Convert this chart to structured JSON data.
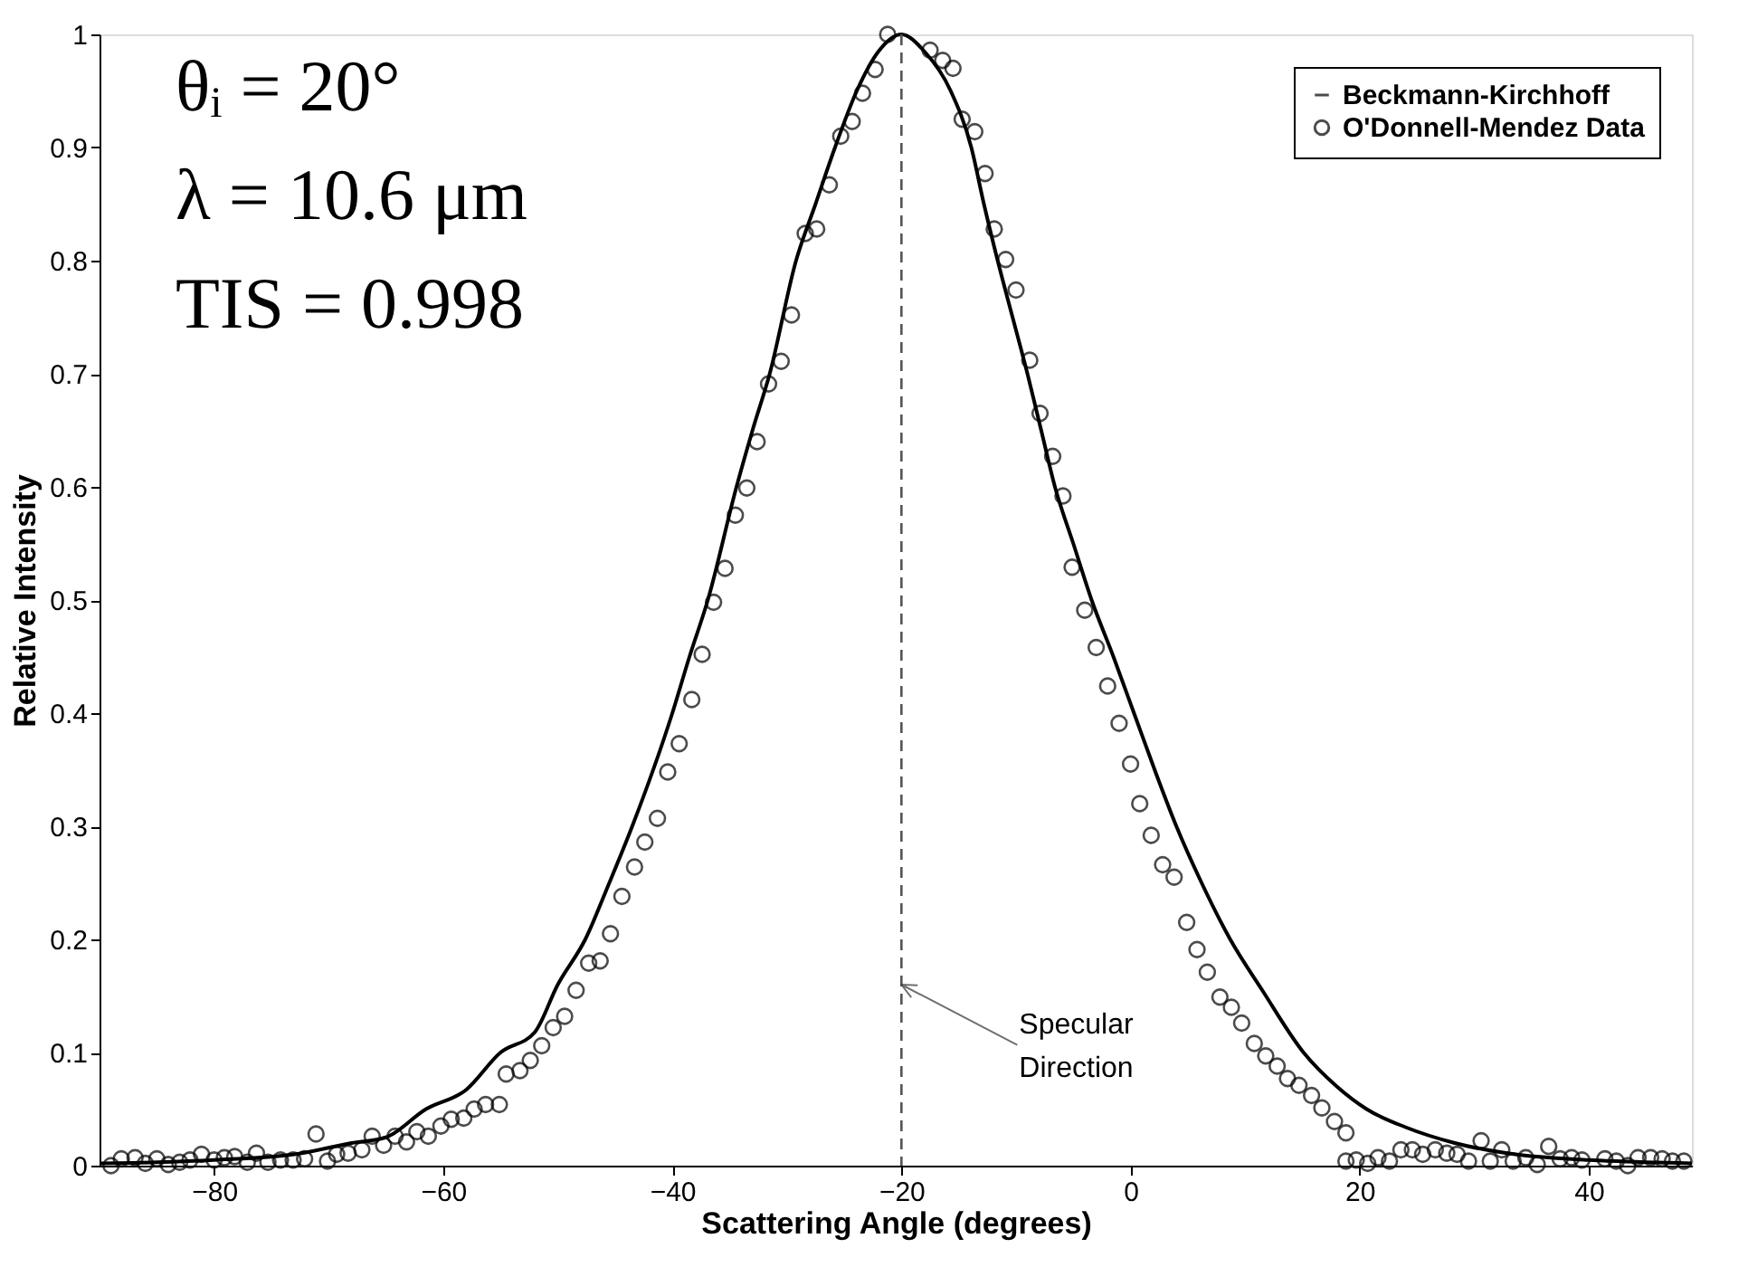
{
  "chart_data": {
    "type": "line",
    "xlabel": "Scattering Angle (degrees)",
    "ylabel": "Relative Intensity",
    "xlim": [
      -90,
      49
    ],
    "xticks": [
      -80,
      -60,
      -40,
      -20,
      0,
      20,
      40
    ],
    "ylim": [
      0,
      1
    ],
    "yticks": [
      0,
      0.1,
      0.2,
      0.3,
      0.4,
      0.5,
      0.6,
      0.7,
      0.8,
      0.9,
      1
    ],
    "grid": false,
    "legend": "top right",
    "series": [
      {
        "name": "Beckmann-Kirchhoff",
        "color": "#000000",
        "line_style": "solid",
        "marker": "none",
        "x": [
          -90,
          -85,
          -80,
          -73,
          -68,
          -65,
          -61.5,
          -58,
          -55,
          -52,
          -50,
          -47.6,
          -45.5,
          -43.5,
          -40,
          -38.5,
          -36.9,
          -34.4,
          -33,
          -31.5,
          -29.2,
          -27.5,
          -25.8,
          -23.9,
          -22,
          -20,
          -18,
          -15.7,
          -13.9,
          -12.8,
          -11.6,
          -10.3,
          -9.0,
          -7.8,
          -6.6,
          -5,
          -3.4,
          -1.5,
          0.3,
          2.1,
          4.0,
          6.2,
          8.7,
          11.5,
          15.1,
          18,
          20.6,
          24,
          28.3,
          33.6,
          40,
          49
        ],
        "values": [
          0.002,
          0.003,
          0.005,
          0.01,
          0.02,
          0.025,
          0.05,
          0.067,
          0.1,
          0.118,
          0.16,
          0.2,
          0.25,
          0.3,
          0.4,
          0.45,
          0.5,
          0.6,
          0.65,
          0.7,
          0.8,
          0.85,
          0.9,
          0.95,
          0.985,
          1,
          0.985,
          0.95,
          0.9,
          0.85,
          0.8,
          0.75,
          0.7,
          0.65,
          0.6,
          0.55,
          0.5,
          0.45,
          0.4,
          0.35,
          0.3,
          0.25,
          0.2,
          0.155,
          0.1,
          0.07,
          0.05,
          0.034,
          0.02,
          0.01,
          0.005,
          0.002
        ]
      },
      {
        "name": "O'Donnell-Mendez Data",
        "type": "scatter",
        "color": "#000000",
        "marker": "circle",
        "x": [
          -89.0,
          -88.1,
          -86.9,
          -86.0,
          -85.0,
          -84.0,
          -83.0,
          -82.1,
          -81.1,
          -80.0,
          -79.1,
          -78.2,
          -77.1,
          -76.3,
          -75.3,
          -74.2,
          -73.1,
          -72.1,
          -71.1,
          -70.1,
          -69.3,
          -68.3,
          -67.1,
          -66.2,
          -65.2,
          -64.2,
          -63.2,
          -62.3,
          -61.3,
          -60.2,
          -59.3,
          -58.2,
          -57.3,
          -56.3,
          -55.1,
          -54.5,
          -53.3,
          -52.4,
          -51.4,
          -50.4,
          -49.4,
          -48.4,
          -47.3,
          -46.3,
          -45.4,
          -44.4,
          -43.3,
          -42.4,
          -41.3,
          -40.4,
          -39.4,
          -38.3,
          -37.4,
          -36.4,
          -35.4,
          -34.5,
          -33.5,
          -32.6,
          -31.6,
          -30.5,
          -29.6,
          -28.4,
          -27.4,
          -26.3,
          -25.3,
          -24.3,
          -23.4,
          -22.3,
          -21.2,
          -17.5,
          -16.4,
          -15.5,
          -14.7,
          -13.6,
          -12.7,
          -11.9,
          -10.9,
          -10.0,
          -8.8,
          -7.9,
          -6.8,
          -5.9,
          -5.1,
          -4.0,
          -3.0,
          -2.0,
          -1.0,
          0.0,
          0.8,
          1.8,
          2.8,
          3.8,
          4.9,
          5.8,
          6.7,
          7.8,
          8.8,
          9.7,
          10.8,
          11.8,
          12.8,
          13.7,
          14.7,
          15.8,
          16.7,
          17.8,
          18.8,
          18.8,
          19.7,
          20.7,
          21.6,
          22.6,
          23.6,
          24.6,
          25.5,
          26.6,
          27.6,
          28.5,
          29.5,
          30.6,
          31.4,
          32.4,
          33.4,
          34.5,
          35.5,
          36.5,
          37.5,
          38.5,
          39.4,
          41.4,
          42.4,
          43.4,
          44.3,
          45.4,
          46.4,
          47.3,
          48.3
        ],
        "values": [
          0.0,
          0.006,
          0.007,
          0.002,
          0.006,
          0.001,
          0.003,
          0.005,
          0.01,
          0.005,
          0.007,
          0.008,
          0.003,
          0.011,
          0.003,
          0.005,
          0.005,
          0.006,
          0.028,
          0.004,
          0.01,
          0.011,
          0.014,
          0.026,
          0.018,
          0.026,
          0.021,
          0.03,
          0.026,
          0.035,
          0.041,
          0.042,
          0.05,
          0.054,
          0.054,
          0.081,
          0.084,
          0.093,
          0.106,
          0.122,
          0.132,
          0.155,
          0.179,
          0.181,
          0.205,
          0.238,
          0.264,
          0.286,
          0.307,
          0.348,
          0.373,
          0.412,
          0.452,
          0.498,
          0.528,
          0.575,
          0.599,
          0.64,
          0.691,
          0.711,
          0.752,
          0.824,
          0.828,
          0.867,
          0.91,
          0.923,
          0.948,
          0.969,
          1.0,
          0.986,
          0.977,
          0.97,
          0.925,
          0.914,
          0.877,
          0.828,
          0.801,
          0.774,
          0.712,
          0.665,
          0.627,
          0.592,
          0.529,
          0.491,
          0.458,
          0.424,
          0.391,
          0.355,
          0.32,
          0.292,
          0.266,
          0.255,
          0.215,
          0.191,
          0.171,
          0.149,
          0.14,
          0.126,
          0.108,
          0.097,
          0.088,
          0.077,
          0.071,
          0.062,
          0.051,
          0.039,
          0.029,
          0.004,
          0.005,
          0.002,
          0.007,
          0.004,
          0.014,
          0.014,
          0.01,
          0.014,
          0.011,
          0.01,
          0.004,
          0.022,
          0.004,
          0.014,
          0.004,
          0.007,
          0.001,
          0.017,
          0.006,
          0.007,
          0.005,
          0.006,
          0.004,
          0.0,
          0.007,
          0.007,
          0.006,
          0.004,
          0.004
        ]
      }
    ],
    "ref_lines": [
      {
        "axis": "x",
        "value": -20,
        "color": "#555555",
        "line_style": "dashed"
      }
    ],
    "annotations": [
      "θᵢ = 20°",
      "λ = 10.6 μm",
      "TIS = 0.998",
      {
        "text": "Specular Direction",
        "x": -20,
        "y": 0.16
      }
    ]
  }
}
